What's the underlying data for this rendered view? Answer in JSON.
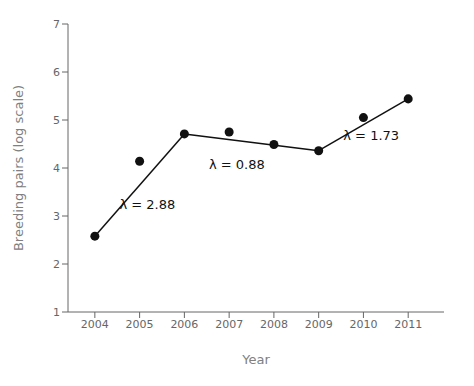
{
  "chart_data": {
    "type": "scatter",
    "x": [
      2004,
      2005,
      2006,
      2007,
      2008,
      2009,
      2010,
      2011
    ],
    "values": [
      2.58,
      4.14,
      4.71,
      4.75,
      4.49,
      4.36,
      5.05,
      5.44
    ],
    "line_segments": [
      {
        "x": [
          2004,
          2006
        ],
        "values": [
          2.58,
          4.71
        ]
      },
      {
        "x": [
          2006,
          2009
        ],
        "values": [
          4.71,
          4.36
        ]
      },
      {
        "x": [
          2009,
          2011
        ],
        "values": [
          4.36,
          5.44
        ]
      }
    ],
    "annotations": [
      {
        "text": "λ = 2.88",
        "x": 2004.55,
        "y": 3.25
      },
      {
        "text": "λ = 0.88",
        "x": 2006.55,
        "y": 4.08
      },
      {
        "text": "λ = 1.73",
        "x": 2009.55,
        "y": 4.68
      }
    ],
    "xlabel": "Year",
    "ylabel": "Breeding pairs (log scale)",
    "xlim": [
      2003.4,
      2011.8
    ],
    "ylim": [
      1,
      7
    ],
    "xticks": [
      2004,
      2005,
      2006,
      2007,
      2008,
      2009,
      2010,
      2011
    ],
    "yticks": [
      1,
      2,
      3,
      4,
      5,
      6,
      7
    ],
    "color": "#111111",
    "grid": false
  }
}
